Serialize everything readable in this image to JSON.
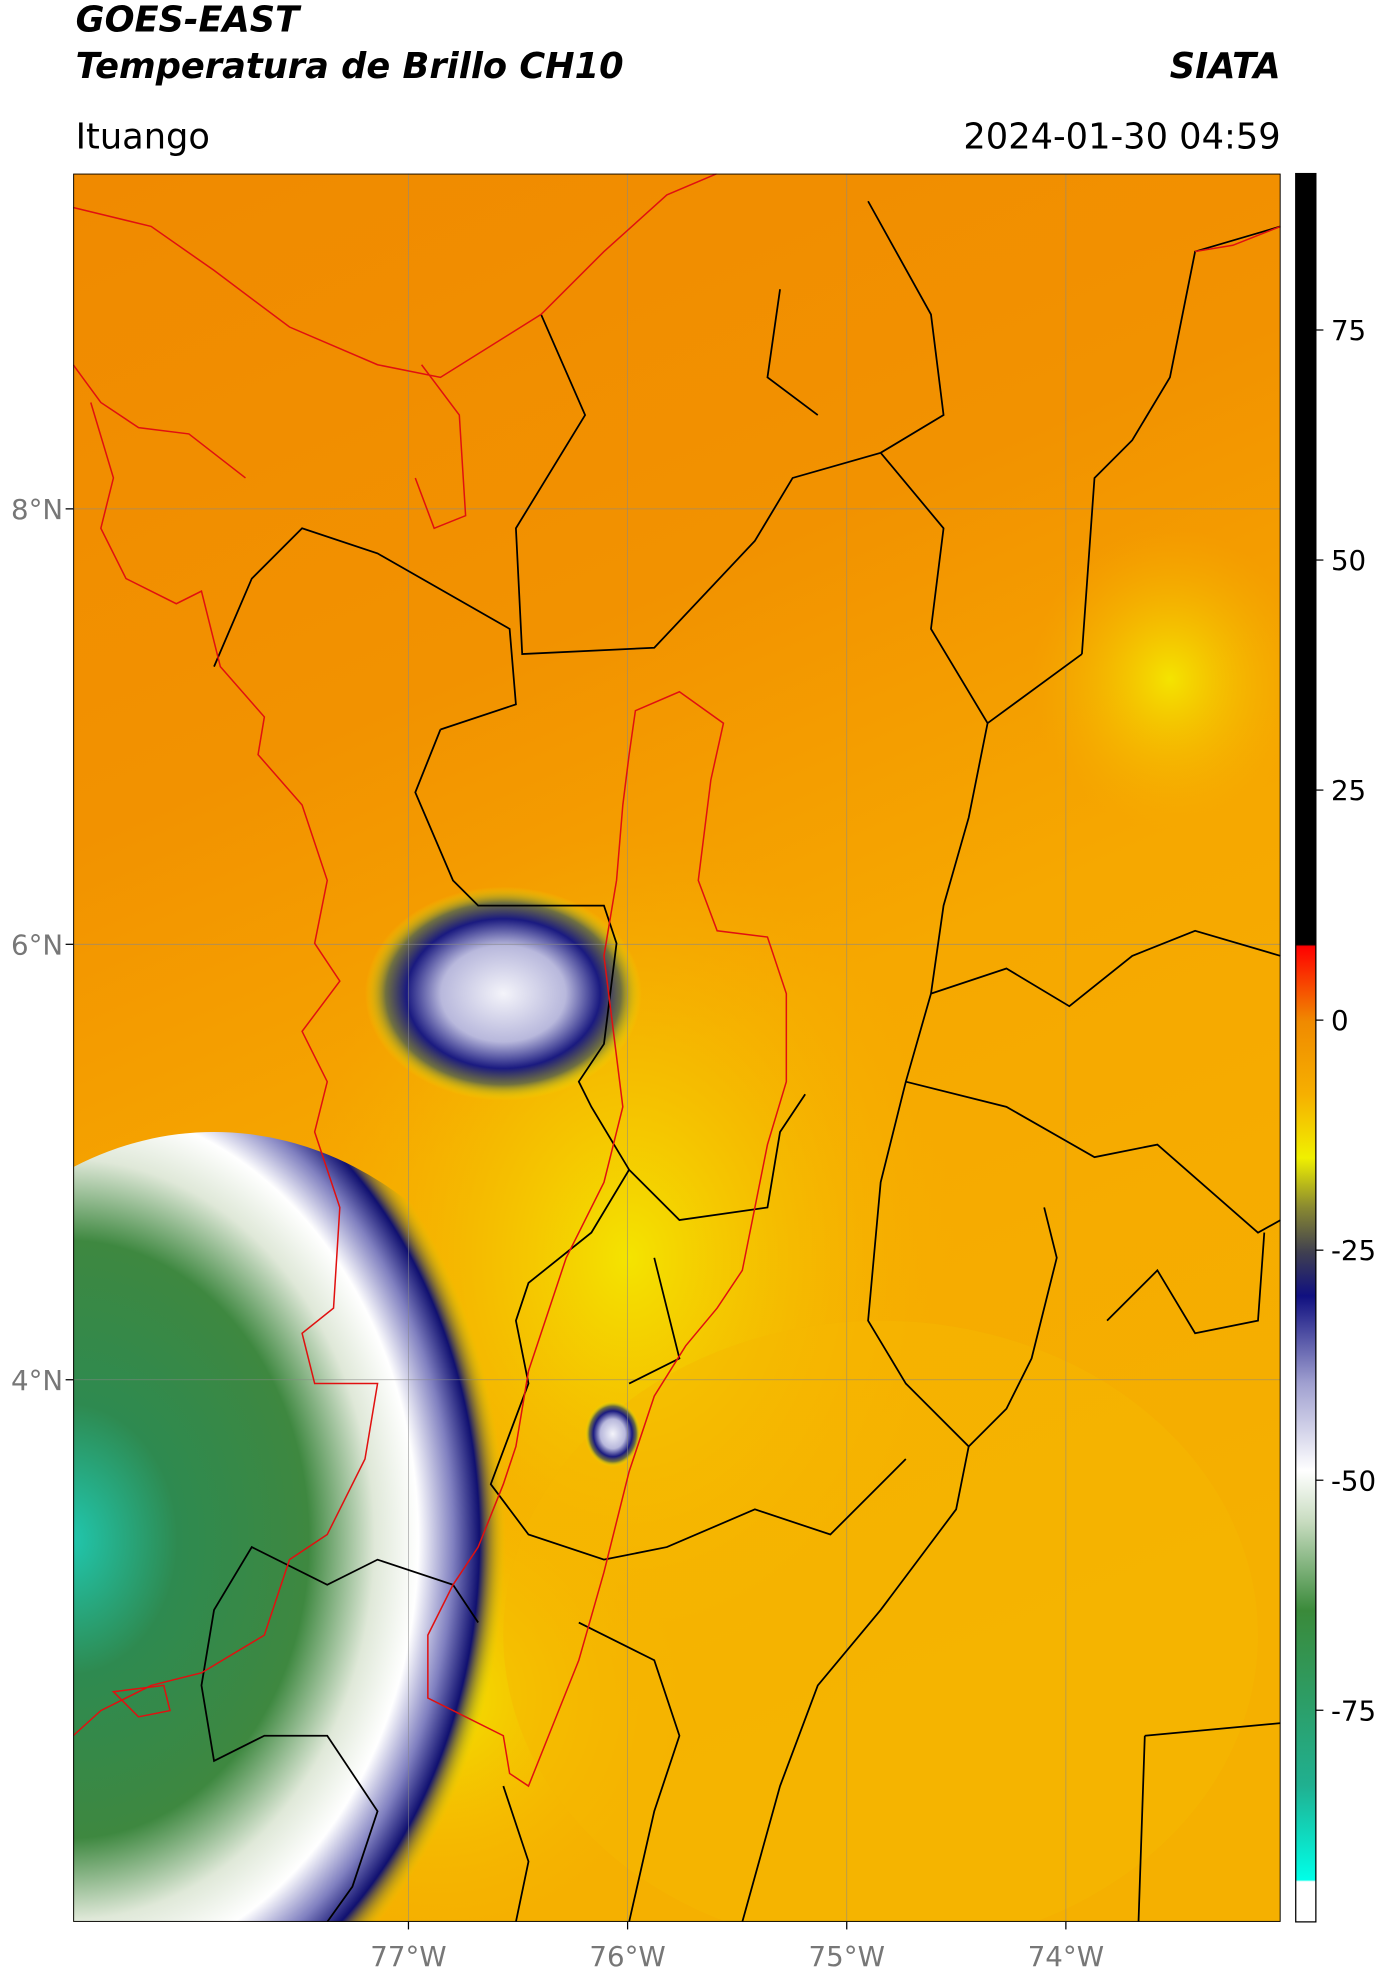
{
  "header": {
    "title_1": "GOES-EAST",
    "title_2": "Temperatura de Brillo CH10",
    "source": "SIATA",
    "location": "Ituango",
    "datetime": "2024-01-30 04:59"
  },
  "map": {
    "xlim": [
      -78.53,
      -73.02
    ],
    "ylim": [
      1.51,
      9.54
    ],
    "xticks": [
      {
        "value": -77,
        "label": "77°W"
      },
      {
        "value": -76,
        "label": "76°W"
      },
      {
        "value": -75,
        "label": "75°W"
      },
      {
        "value": -74,
        "label": "74°W"
      }
    ],
    "yticks": [
      {
        "value": 8,
        "label": "8°N"
      },
      {
        "value": 6,
        "label": "6°N"
      },
      {
        "value": 4,
        "label": "4°N"
      }
    ],
    "grid": true,
    "colorbar": {
      "clim": [
        -98,
        92
      ],
      "ticks": [
        75,
        50,
        25,
        0,
        -25,
        -50,
        -75
      ]
    }
  }
}
